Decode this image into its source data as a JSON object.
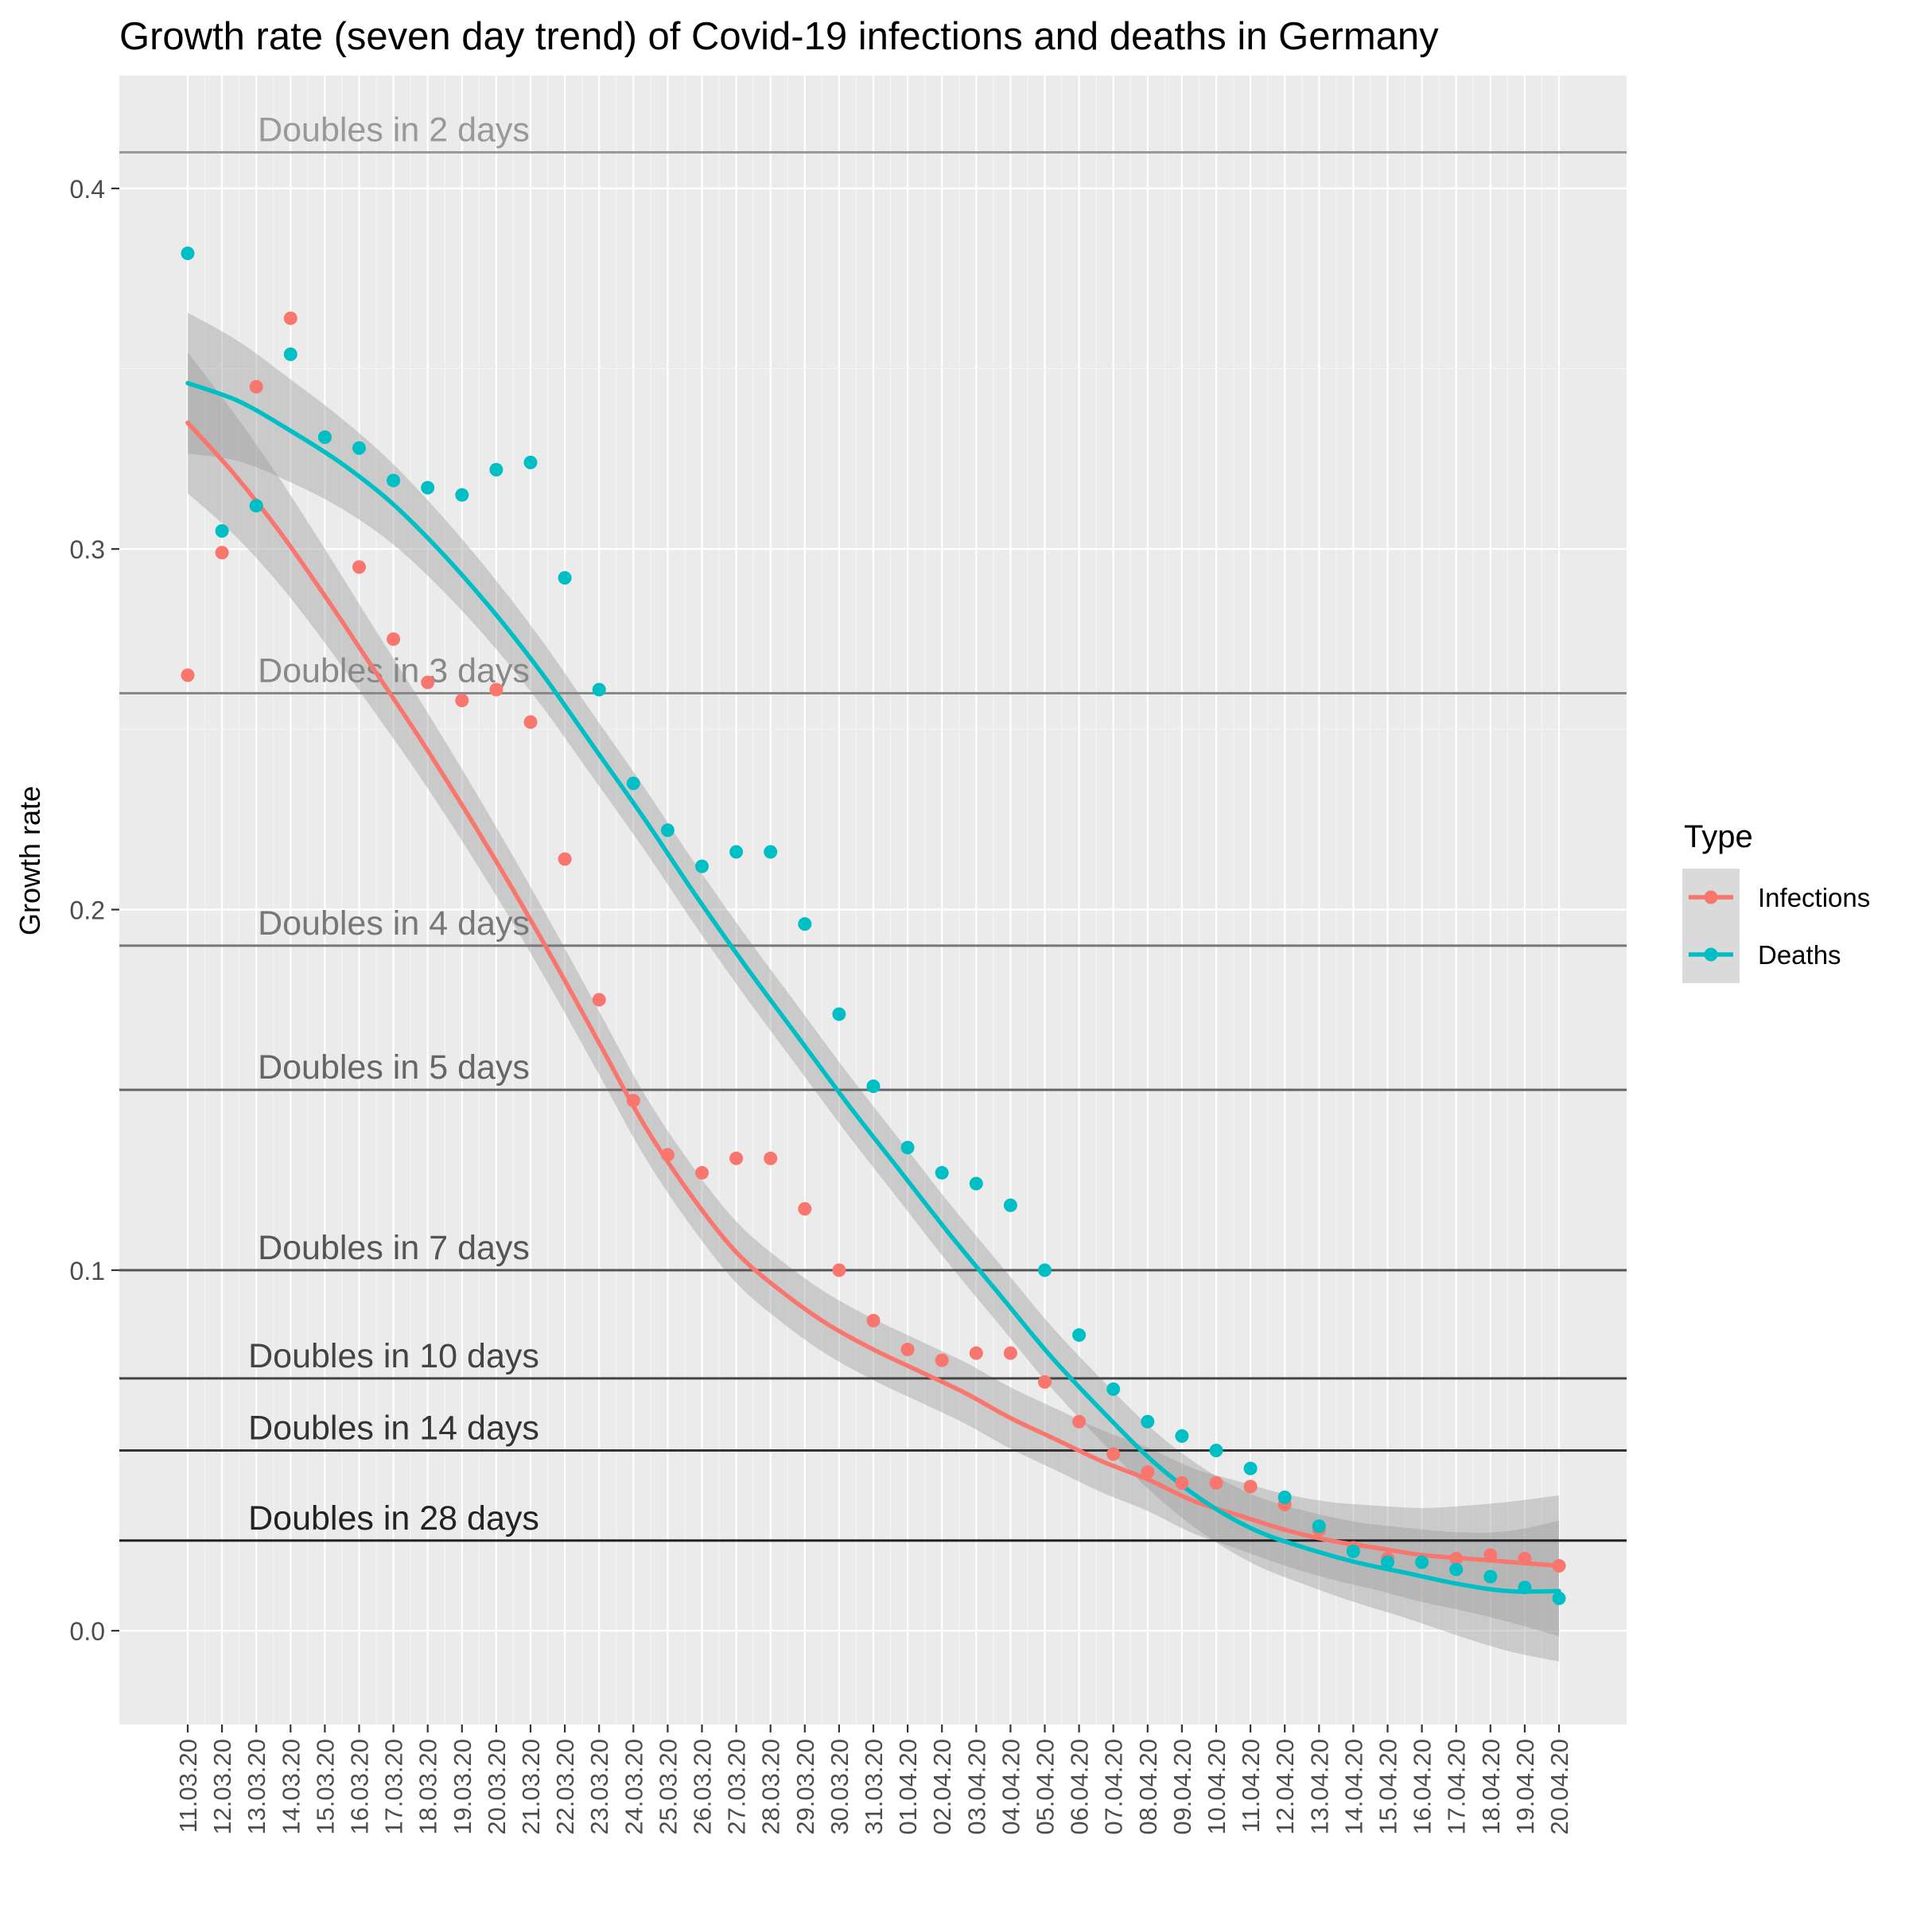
{
  "chart_data": {
    "type": "scatter",
    "title": "Growth rate (seven day trend) of Covid-19 infections and deaths in Germany",
    "xlabel": "",
    "ylabel": "Growth rate",
    "ylim": [
      -0.026,
      0.4313
    ],
    "yticks": [
      0.0,
      0.1,
      0.2,
      0.3,
      0.4
    ],
    "y_tick_labels": [
      "0.0",
      "0.1",
      "0.2",
      "0.3",
      "0.4"
    ],
    "categories": [
      "11.03.20",
      "12.03.20",
      "13.03.20",
      "14.03.20",
      "15.03.20",
      "16.03.20",
      "17.03.20",
      "18.03.20",
      "19.03.20",
      "20.03.20",
      "21.03.20",
      "22.03.20",
      "23.03.20",
      "24.03.20",
      "25.03.20",
      "26.03.20",
      "27.03.20",
      "28.03.20",
      "29.03.20",
      "30.03.20",
      "31.03.20",
      "01.04.20",
      "02.04.20",
      "03.04.20",
      "04.04.20",
      "05.04.20",
      "06.04.20",
      "07.04.20",
      "08.04.20",
      "09.04.20",
      "10.04.20",
      "11.04.20",
      "12.04.20",
      "13.04.20",
      "14.04.20",
      "15.04.20",
      "16.04.20",
      "17.04.20",
      "18.04.20",
      "19.04.20",
      "20.04.20"
    ],
    "grid": true,
    "legend": {
      "title": "Type",
      "position": "right"
    },
    "series": [
      {
        "name": "Infections",
        "color": "#F8766D",
        "values": [
          0.265,
          0.299,
          0.345,
          0.364,
          0.331,
          0.295,
          0.275,
          0.263,
          0.258,
          0.261,
          0.252,
          0.214,
          0.175,
          0.147,
          0.132,
          0.127,
          0.131,
          0.131,
          0.117,
          0.1,
          0.086,
          0.078,
          0.075,
          0.077,
          0.077,
          0.069,
          0.058,
          0.049,
          0.044,
          0.041,
          0.041,
          0.04,
          0.035,
          0.028,
          0.023,
          0.02,
          0.019,
          0.02,
          0.021,
          0.02,
          0.018
        ],
        "trend": [
          0.335,
          0.321,
          0.305,
          0.287,
          0.268,
          0.249,
          0.229,
          0.208,
          0.186,
          0.163,
          0.14,
          0.121,
          0.105,
          0.094,
          0.085,
          0.078,
          0.072,
          0.066,
          0.059,
          0.053,
          0.047,
          0.042,
          0.036,
          0.032,
          0.028,
          0.025,
          0.023,
          0.021,
          0.02,
          0.019,
          0.018
        ]
      },
      {
        "name": "Deaths",
        "color": "#00BFC4",
        "values": [
          0.382,
          0.305,
          0.312,
          0.354,
          0.331,
          0.328,
          0.319,
          0.317,
          0.315,
          0.322,
          0.324,
          0.292,
          0.261,
          0.235,
          0.222,
          0.212,
          0.216,
          0.216,
          0.196,
          0.171,
          0.151,
          0.134,
          0.127,
          0.124,
          0.118,
          0.1,
          0.082,
          0.067,
          0.058,
          0.054,
          0.05,
          0.045,
          0.037,
          0.029,
          0.022,
          0.019,
          0.019,
          0.017,
          0.015,
          0.012,
          0.009
        ],
        "trend": [
          0.346,
          0.341,
          0.333,
          0.324,
          0.313,
          0.299,
          0.283,
          0.265,
          0.245,
          0.225,
          0.204,
          0.184,
          0.165,
          0.146,
          0.128,
          0.11,
          0.093,
          0.076,
          0.061,
          0.047,
          0.036,
          0.028,
          0.023,
          0.019,
          0.016,
          0.013,
          0.011,
          0.011
        ]
      }
    ],
    "reference_lines": [
      {
        "label": "Doubles in 2 days",
        "y": 0.41,
        "color": "#999999"
      },
      {
        "label": "Doubles in 3 days",
        "y": 0.26,
        "color": "#888888"
      },
      {
        "label": "Doubles in 4 days",
        "y": 0.19,
        "color": "#777777"
      },
      {
        "label": "Doubles in 5 days",
        "y": 0.15,
        "color": "#666666"
      },
      {
        "label": "Doubles in 7 days",
        "y": 0.1,
        "color": "#555555"
      },
      {
        "label": "Doubles in 10 days",
        "y": 0.07,
        "color": "#444444"
      },
      {
        "label": "Doubles in 14 days",
        "y": 0.05,
        "color": "#333333"
      },
      {
        "label": "Doubles in 28 days",
        "y": 0.025,
        "color": "#222222"
      }
    ]
  }
}
